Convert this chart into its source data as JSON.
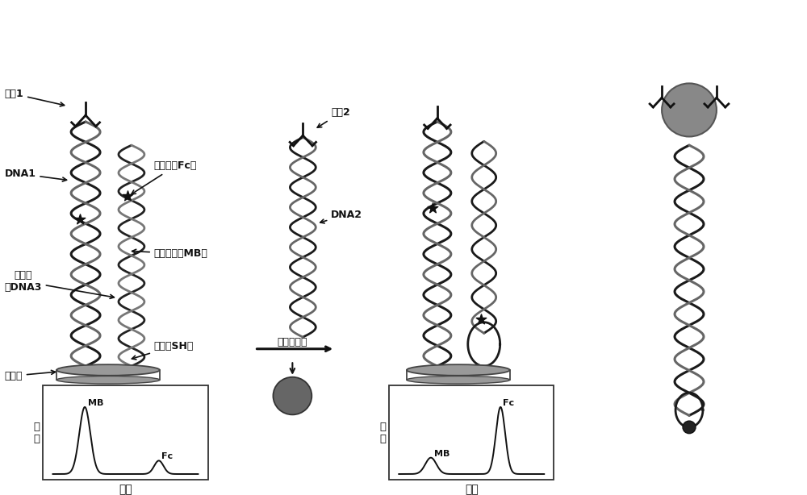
{
  "bg_color": "#ffffff",
  "labels": {
    "antibody1": "抗体1",
    "DNA1": "DNA1",
    "ferrocene": "二茂铁（Fc）",
    "MB_label": "亚甲基蓝（MB）",
    "thiol": "疆基（SH）",
    "capture_probe": "捕获探\n鷚DNA3",
    "gold_electrode": "金电极",
    "antibody2": "抗体2",
    "DNA2": "DNA2",
    "target_protein": "目标蛋白质",
    "current1": "电\n流",
    "current2": "电\n流",
    "potential1": "电势",
    "potential2": "电势",
    "MB_peak1": "MB",
    "Fc_peak1": "Fc",
    "MB_peak2": "MB",
    "Fc_peak2": "Fc"
  },
  "colors": {
    "dna_dark": "#1a1a1a",
    "dna_gray": "#555555",
    "electrode": "#888888",
    "electrode_edge": "#333333",
    "star": "#111111",
    "antibody": "#111111",
    "protein": "#666666",
    "plot_bg": "#ffffff",
    "plot_line": "#111111",
    "arrow": "#111111",
    "text": "#111111"
  }
}
